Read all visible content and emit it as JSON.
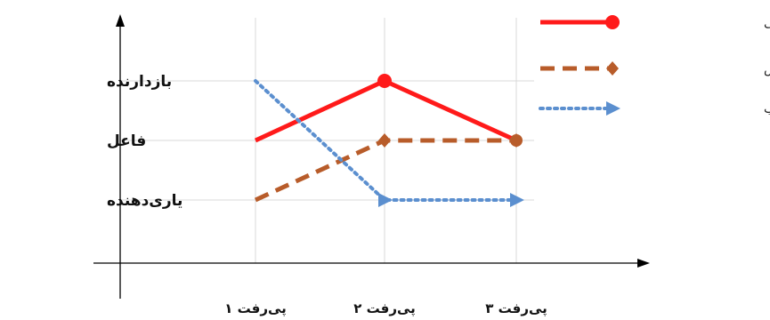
{
  "chart_data": {
    "type": "line",
    "categories": [
      "پی‌رفت ۱",
      "پی‌رفت ۲",
      "پی‌رفت ۳"
    ],
    "y_categories": [
      "یاری‌دهنده",
      "فاعل",
      "بازدارنده"
    ],
    "series": [
      {
        "name": "رزمندگان اخراجی",
        "values": [
          2,
          3,
          2
        ],
        "color": "#ff1a1a",
        "dash": "solid",
        "marker": "circle"
      },
      {
        "name": "رزمندگان مخلص",
        "values": [
          1,
          2,
          2
        ],
        "color": "#b85c2a",
        "dash": "dashed",
        "marker": "diamond"
      },
      {
        "name": "رزمندگان فرصت‌طلب",
        "values": [
          3,
          1,
          1
        ],
        "color": "#5b8fcf",
        "dash": "dotted",
        "marker": "triangle-right"
      }
    ],
    "grid": true,
    "legend_position": "top-right"
  }
}
